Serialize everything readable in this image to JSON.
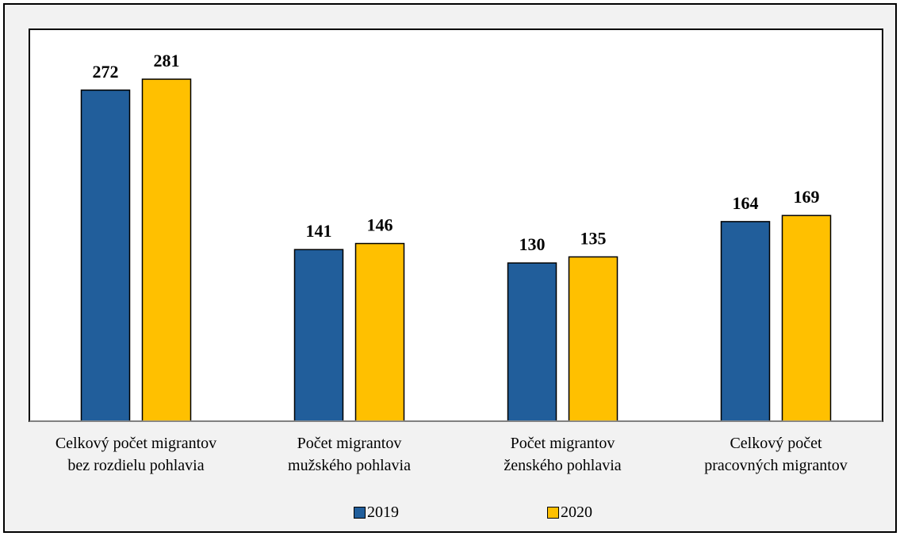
{
  "chart_data": {
    "type": "bar",
    "categories": [
      "Celkový počet migrantov\nbez rozdielu pohlavia",
      "Počet migrantov\nmužského pohlavia",
      "Počet migrantov\nženského pohlavia",
      "Celkový počet\npracovných migrantov"
    ],
    "series": [
      {
        "name": "2019",
        "color": "#215e9b",
        "values": [
          272,
          141,
          130,
          164
        ]
      },
      {
        "name": "2020",
        "color": "#ffc000",
        "values": [
          281,
          146,
          135,
          169
        ]
      }
    ],
    "ylim": [
      0,
      322
    ],
    "legend": "bottom"
  }
}
